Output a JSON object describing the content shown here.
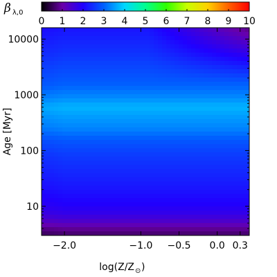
{
  "chart_data": {
    "type": "heatmap",
    "colorbar": {
      "label_symbol": "β",
      "label_subscript": "λ,0",
      "range": [
        0,
        10
      ],
      "ticks": [
        "0",
        "1",
        "2",
        "3",
        "4",
        "5",
        "6",
        "7",
        "8",
        "9",
        "10"
      ],
      "colormap": "rainbow"
    },
    "xaxis": {
      "label_main": "log(Z/Z",
      "label_sub": "⊙",
      "label_close": ")",
      "range": [
        -2.3,
        0.42
      ],
      "ticks": [
        {
          "value": -2.0,
          "label": "−2.0"
        },
        {
          "value": -1.0,
          "label": "−1.0"
        },
        {
          "value": -0.5,
          "label": "−0.5"
        },
        {
          "value": 0.0,
          "label": "0.0"
        },
        {
          "value": 0.3,
          "label": "0.3"
        }
      ]
    },
    "yaxis": {
      "label": "Age [Myr]",
      "scale": "log",
      "range": [
        3,
        16000
      ],
      "ticks": [
        {
          "value": 10,
          "label": "10"
        },
        {
          "value": 100,
          "label": "100"
        },
        {
          "value": 1000,
          "label": "1000"
        },
        {
          "value": 10000,
          "label": "10000"
        }
      ]
    },
    "z_profile_by_age": [
      {
        "age": 3,
        "value": 0.6
      },
      {
        "age": 4,
        "value": 0.9
      },
      {
        "age": 5,
        "value": 1.3
      },
      {
        "age": 7,
        "value": 1.7
      },
      {
        "age": 10,
        "value": 1.95
      },
      {
        "age": 20,
        "value": 2.2
      },
      {
        "age": 40,
        "value": 2.4
      },
      {
        "age": 80,
        "value": 2.6
      },
      {
        "age": 150,
        "value": 2.9
      },
      {
        "age": 250,
        "value": 3.3
      },
      {
        "age": 400,
        "value": 3.5
      },
      {
        "age": 600,
        "value": 3.7
      },
      {
        "age": 900,
        "value": 3.35
      },
      {
        "age": 1500,
        "value": 3.0
      },
      {
        "age": 3000,
        "value": 2.75
      },
      {
        "age": 6000,
        "value": 2.5
      },
      {
        "age": 10000,
        "value": 2.35
      },
      {
        "age": 16000,
        "value": 2.2
      }
    ],
    "high_metallicity_old_dip": "at log(Z/Z⊙) > −0.7 and age > 2000 Myr values fall to about 1.0 in the top-right corner"
  },
  "colors": {
    "stops": [
      "#000000",
      "#6a00a8",
      "#2000ff",
      "#0060ff",
      "#00d8ff",
      "#00ff90",
      "#30ff00",
      "#c8ff00",
      "#ffd000",
      "#ff6000",
      "#ff0000"
    ]
  }
}
